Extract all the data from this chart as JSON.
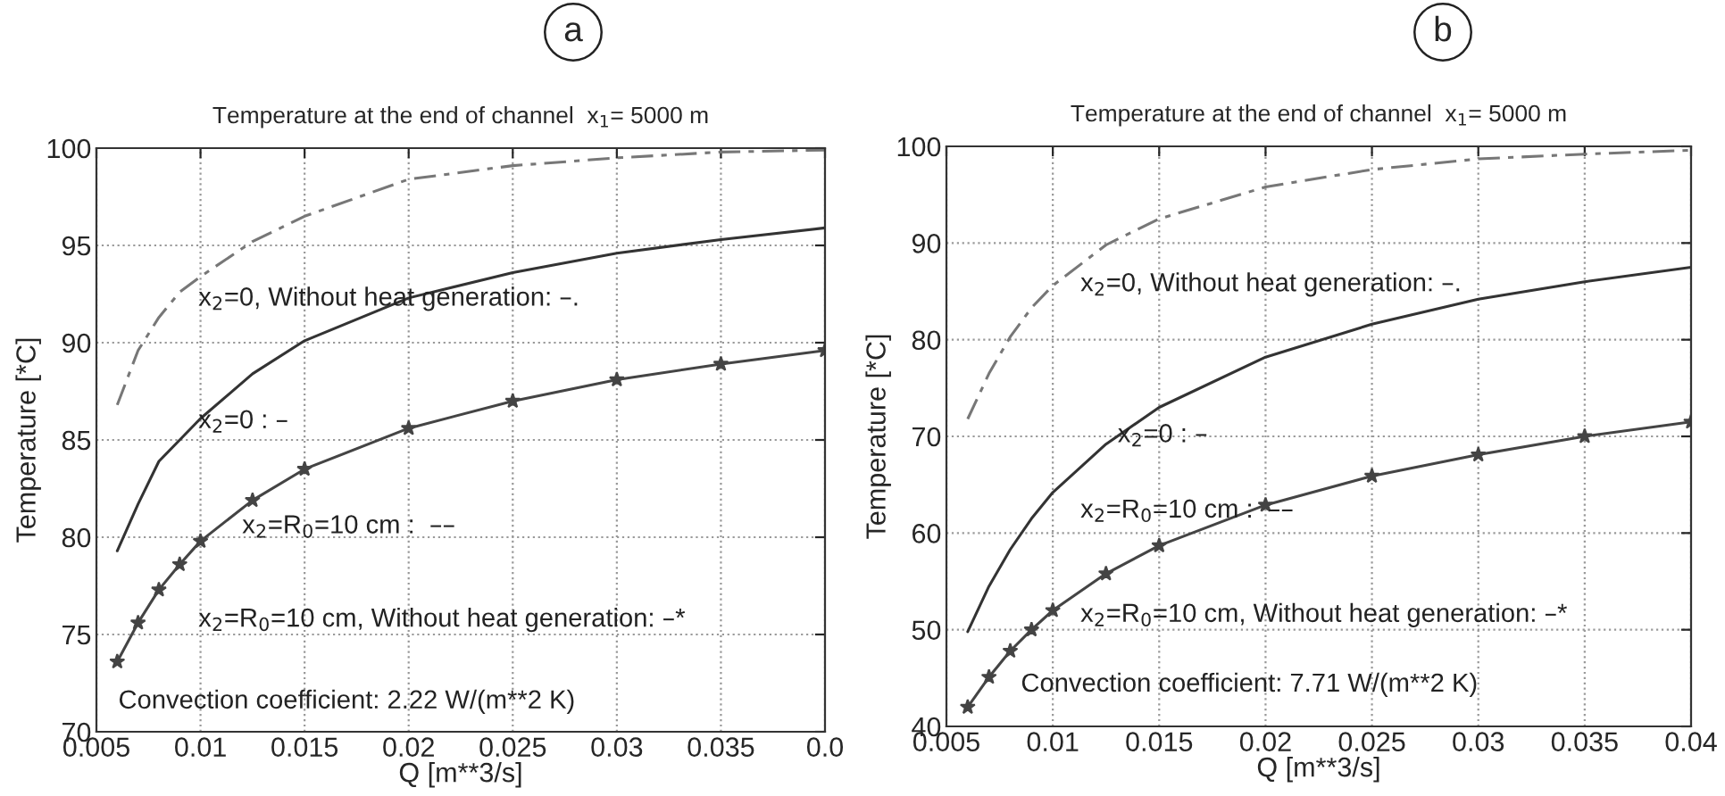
{
  "chart_data": [
    {
      "type": "line",
      "title": "Temperature at the end of channel  x$_{1}$= 5000 m",
      "xlabel": "Q [m**3/s]",
      "ylabel": "Temperature [*C]",
      "annotations": [
        "a",
        "x$_{2}$=0, Without heat generation: –.",
        "x$_{2}$=0 : –",
        "x$_{2}$=R$_{0}$=10 cm :  ––",
        "x$_{2}$=R$_{0}$=10 cm, Without heat generation: –*",
        "Convection coefficient: 2.22 W/(m**2 K)"
      ],
      "x": [
        0.006,
        0.007,
        0.008,
        0.009,
        0.01,
        0.0125,
        0.015,
        0.02,
        0.025,
        0.03,
        0.035,
        0.04
      ],
      "series": [
        {
          "color": "#777777",
          "line_style": "dashed",
          "marker": "none",
          "values": [
            86.8,
            89.6,
            91.3,
            92.6,
            93.4,
            95.2,
            96.5,
            98.4,
            99.1,
            99.5,
            99.8,
            99.9
          ]
        },
        {
          "color": "#333333",
          "line_style": "solid",
          "marker": "none",
          "values": [
            79.3,
            81.7,
            83.9,
            85.0,
            86.1,
            88.4,
            90.1,
            92.3,
            93.6,
            94.6,
            95.3,
            95.9
          ]
        },
        {
          "color": "#444444",
          "line_style": "solid",
          "marker": "star",
          "values": [
            73.6,
            75.6,
            77.3,
            78.6,
            79.8,
            81.9,
            83.5,
            85.6,
            87.0,
            88.1,
            88.9,
            89.6
          ]
        }
      ],
      "xlim": [
        0.005,
        0.04
      ],
      "xticks": [
        0.005,
        0.01,
        0.015,
        0.02,
        0.025,
        0.03,
        0.035,
        {
          "value": 0.04,
          "label": "0.0"
        }
      ],
      "ylim": [
        70,
        100
      ],
      "yticks": [
        70,
        75,
        80,
        85,
        90,
        95,
        100
      ],
      "grid": true
    },
    {
      "type": "line",
      "title": "Temperature at the end of channel  x$_{1}$= 5000 m",
      "xlabel": "Q [m**3/s]",
      "ylabel": "Temperature [*C]",
      "annotations": [
        "b",
        "x$_{2}$=0, Without heat generation: –.",
        "x$_{2}$=0 : –",
        "x$_{2}$=R$_{0}$=10 cm :  ––",
        "x$_{2}$=R$_{0}$=10 cm, Without heat generation: –*",
        "Convection coefficient: 7.71 W/(m**2 K)"
      ],
      "x": [
        0.006,
        0.007,
        0.008,
        0.009,
        0.01,
        0.0125,
        0.015,
        0.02,
        0.025,
        0.03,
        0.035,
        0.04
      ],
      "series": [
        {
          "color": "#777777",
          "line_style": "dashed",
          "marker": "none",
          "values": [
            71.8,
            76.5,
            80.3,
            83.3,
            85.6,
            89.8,
            92.5,
            95.8,
            97.6,
            98.7,
            99.2,
            99.6
          ]
        },
        {
          "color": "#333333",
          "line_style": "solid",
          "marker": "none",
          "values": [
            49.8,
            54.5,
            58.3,
            61.5,
            64.2,
            69.2,
            73.0,
            78.2,
            81.6,
            84.2,
            86.0,
            87.5
          ]
        },
        {
          "color": "#444444",
          "line_style": "solid",
          "marker": "star",
          "values": [
            42.0,
            45.1,
            47.8,
            50.0,
            52.0,
            55.8,
            58.7,
            62.9,
            65.9,
            68.1,
            70.0,
            71.5
          ]
        }
      ],
      "xlim": [
        0.005,
        0.04
      ],
      "xticks": [
        0.005,
        0.01,
        0.015,
        0.02,
        0.025,
        0.03,
        0.035,
        0.04
      ],
      "ylim": [
        40,
        100
      ],
      "yticks": [
        40,
        50,
        60,
        70,
        80,
        90,
        100
      ],
      "grid": true
    }
  ]
}
